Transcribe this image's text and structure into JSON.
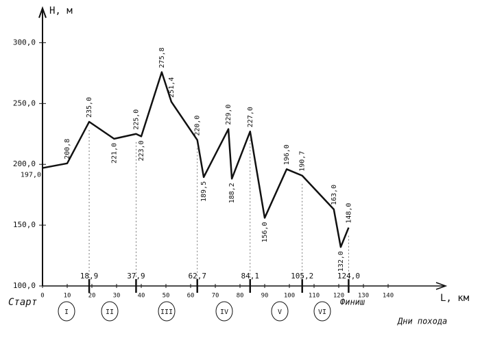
{
  "chart_data": {
    "type": "line",
    "y_label": "H, м",
    "x_label": "L, км",
    "start_label": "Старт",
    "finish_label": "Финиш",
    "days_label": "Дни похода",
    "days": [
      "I",
      "II",
      "III",
      "IV",
      "V",
      "VI"
    ],
    "x": [
      0,
      10,
      18.9,
      29,
      37.9,
      40,
      48.3,
      52.2,
      62.7,
      65.3,
      75.3,
      76.7,
      84.1,
      90,
      98.9,
      105.2,
      118,
      120.8,
      124
    ],
    "values": [
      197.0,
      200.8,
      235.0,
      221.0,
      225.0,
      223.0,
      275.8,
      251.4,
      220.0,
      189.5,
      229.0,
      188.2,
      227.0,
      156.0,
      196.0,
      190.7,
      163.0,
      132.0,
      148.0
    ],
    "value_labels": [
      "197,0",
      "200,8",
      "235,0",
      "221,0",
      "225,0",
      "223,0",
      "275,8",
      "251,4",
      "220,0",
      "189,5",
      "229,0",
      "188,2",
      "227,0",
      "156,0",
      "196,0",
      "190,7",
      "163,0",
      "132,0",
      "148,0"
    ],
    "color": "#111111",
    "xlim": [
      0,
      160
    ],
    "ylim": [
      100,
      325
    ],
    "xticks": [
      0,
      10,
      20,
      30,
      40,
      50,
      60,
      70,
      80,
      90,
      100,
      110,
      120,
      130,
      140
    ],
    "yticks": [
      {
        "value": 100,
        "label": "100,0"
      },
      {
        "value": 150,
        "label": "150,0"
      },
      {
        "value": 200,
        "label": "200,0"
      },
      {
        "value": 250,
        "label": "250,0"
      },
      {
        "value": 300,
        "label": "300,0"
      }
    ],
    "day_markers": [
      {
        "value": 18.9,
        "label": "18,9"
      },
      {
        "value": 37.9,
        "label": "37,9"
      },
      {
        "value": 62.7,
        "label": "62,7"
      },
      {
        "value": 84.1,
        "label": "84,1"
      },
      {
        "value": 105.2,
        "label": "105,2"
      },
      {
        "value": 124.0,
        "label": "124,0"
      }
    ]
  }
}
